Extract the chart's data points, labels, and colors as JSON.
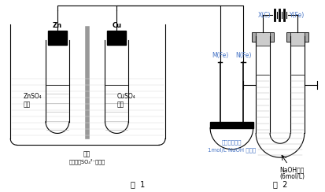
{
  "fig_width": 4.14,
  "fig_height": 2.44,
  "dpi": 100,
  "bg_color": "#ffffff",
  "blue": "#4472C4",
  "black": "#000000",
  "gray": "#888888",
  "lgray": "#cccccc",
  "fig1_label": "图  1",
  "fig2_label": "图  2",
  "zn_label": "Zn",
  "cu_label": "Cu",
  "znso4_line1": "ZnSO₄",
  "znso4_line2": "溶液",
  "cuso4_line1": "CuSO₄",
  "cuso4_line2": "溶液",
  "membrane_label": "隔膜",
  "membrane_note": "（只允许SO₄²⁻通过）",
  "mfe_label": "M(Fe)",
  "nfe_label": "N(Fe)",
  "filter_line1": "滤纸（滴加了",
  "filter_line2": "1mol/L NaOH 溶液）",
  "xc_label": "X(C)",
  "yfe_label": "Y(Fe)",
  "naoh_line1": "NaOH溶液",
  "naoh_line2": "(6mol/L)"
}
